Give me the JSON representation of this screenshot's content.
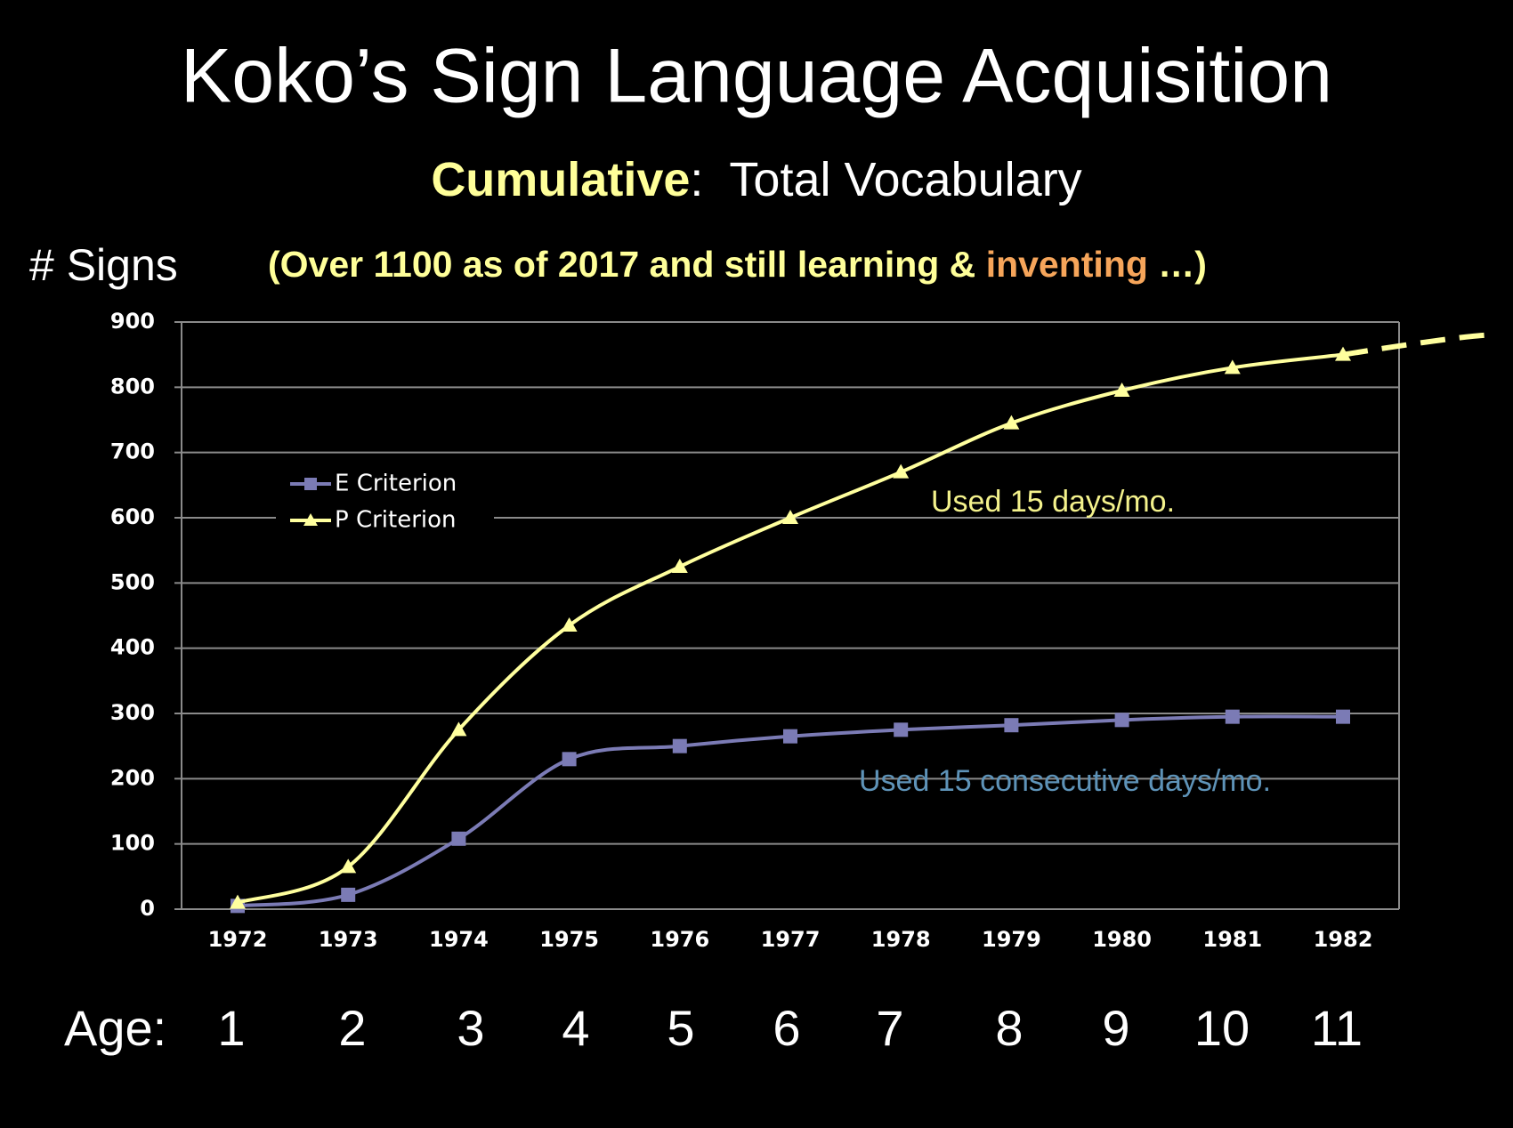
{
  "chart_data": {
    "type": "line",
    "title": "Koko’s Sign Language Acquisition",
    "subtitle": {
      "highlight": "Cumulative",
      "rest": ":  Total Vocabulary"
    },
    "y_label": "# Signs",
    "note": {
      "before": "(Over 1100 as of 2017 and still learning & ",
      "highlight": "inventing",
      "after": " …)"
    },
    "categories": [
      "1972",
      "1973",
      "1974",
      "1975",
      "1976",
      "1977",
      "1978",
      "1979",
      "1980",
      "1981",
      "1982"
    ],
    "series": [
      {
        "name": "E Criterion",
        "color": "#7b7bb5",
        "marker": "square",
        "values": [
          5,
          22,
          108,
          230,
          250,
          265,
          275,
          282,
          290,
          295,
          295
        ]
      },
      {
        "name": "P Criterion",
        "color": "#ffff9e",
        "marker": "triangle",
        "values": [
          10,
          65,
          275,
          435,
          525,
          600,
          670,
          745,
          795,
          830,
          850
        ]
      }
    ],
    "ylim": [
      0,
      900
    ],
    "yticks": [
      0,
      100,
      200,
      300,
      400,
      500,
      600,
      700,
      800,
      900
    ],
    "grid": true,
    "annotations": [
      {
        "text": "Used 15 days/mo.",
        "color": "#f4f28c"
      },
      {
        "text": "Used 15 consecutive days/mo.",
        "color": "#5e93b8"
      }
    ],
    "ages": {
      "label": "Age:",
      "values": [
        1,
        2,
        3,
        4,
        5,
        6,
        7,
        8,
        9,
        10,
        11
      ]
    }
  }
}
